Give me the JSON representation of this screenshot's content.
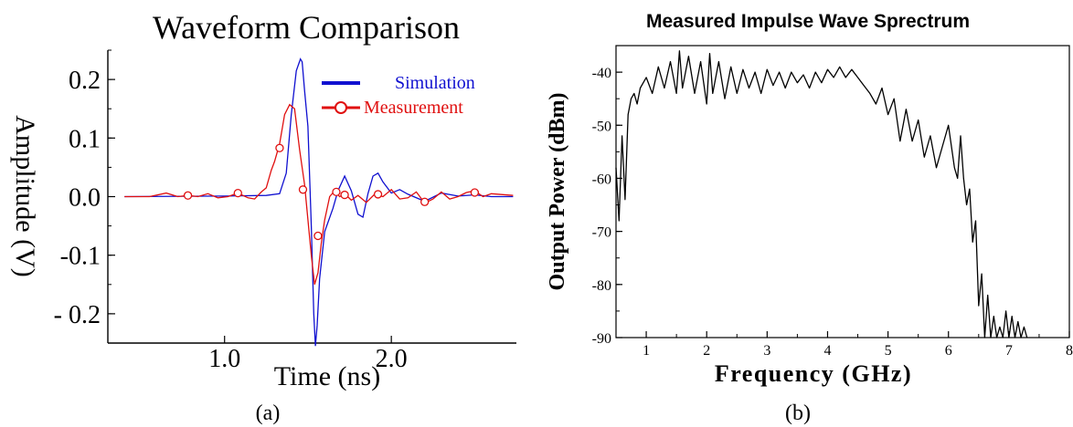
{
  "chart_data": [
    {
      "panel_label": "(a)",
      "type": "line",
      "title": "Waveform Comparison",
      "xlabel": "Time (ns)",
      "ylabel": "Amplitude (V)",
      "xlim": [
        0.3,
        2.75
      ],
      "ylim": [
        -0.25,
        0.25
      ],
      "xticks": [
        1.0,
        2.0
      ],
      "xtick_labels": [
        "1.0",
        "2.0"
      ],
      "yticks": [
        0.2,
        0.1,
        0.0,
        -0.1,
        -0.2
      ],
      "ytick_labels": [
        "0.2",
        "0.1",
        "0.0",
        "-0.1",
        "- 0.2"
      ],
      "legend_position": "top-right",
      "grid": false,
      "series": [
        {
          "name": "Simulation",
          "color": "#1010d0",
          "marker": "none",
          "x": [
            0.4,
            1.0,
            1.25,
            1.33,
            1.37,
            1.4,
            1.43,
            1.455,
            1.465,
            1.48,
            1.5,
            1.52,
            1.535,
            1.545,
            1.555,
            1.57,
            1.6,
            1.65,
            1.68,
            1.72,
            1.76,
            1.8,
            1.83,
            1.86,
            1.89,
            1.92,
            1.95,
            2.0,
            2.05,
            2.1,
            2.2,
            2.3,
            2.4,
            2.5,
            2.6,
            2.73
          ],
          "y": [
            0.0,
            0.001,
            0.002,
            0.005,
            0.04,
            0.14,
            0.215,
            0.235,
            0.23,
            0.18,
            0.12,
            -0.05,
            -0.2,
            -0.255,
            -0.22,
            -0.14,
            -0.06,
            -0.02,
            0.01,
            0.035,
            0.01,
            -0.03,
            -0.035,
            0.005,
            0.035,
            0.04,
            0.025,
            0.006,
            0.012,
            0.004,
            -0.008,
            0.006,
            0.001,
            0.003,
            0.0,
            0.0
          ]
        },
        {
          "name": "Measurement",
          "color": "#e01010",
          "marker": "circle",
          "x": [
            0.4,
            0.55,
            0.65,
            0.72,
            0.78,
            0.84,
            0.9,
            0.96,
            1.02,
            1.08,
            1.14,
            1.18,
            1.22,
            1.25,
            1.28,
            1.3,
            1.33,
            1.36,
            1.39,
            1.42,
            1.45,
            1.48,
            1.52,
            1.54,
            1.56,
            1.58,
            1.6,
            1.63,
            1.66,
            1.69,
            1.72,
            1.76,
            1.8,
            1.85,
            1.9,
            1.95,
            2.0,
            2.05,
            2.1,
            2.15,
            2.2,
            2.25,
            2.3,
            2.35,
            2.4,
            2.45,
            2.5,
            2.55,
            2.6,
            2.73
          ],
          "y": [
            0.0,
            0.0,
            0.006,
            0.0,
            0.002,
            0.0,
            0.005,
            -0.002,
            0.0,
            0.006,
            -0.002,
            -0.004,
            0.008,
            0.015,
            0.045,
            0.06,
            0.09,
            0.14,
            0.157,
            0.15,
            0.08,
            0.02,
            -0.1,
            -0.15,
            -0.13,
            -0.08,
            -0.04,
            0.0,
            0.01,
            0.0,
            0.005,
            -0.006,
            0.002,
            -0.01,
            0.004,
            0.0,
            0.012,
            -0.004,
            -0.002,
            0.008,
            -0.011,
            -0.004,
            0.008,
            -0.004,
            0.0,
            0.007,
            0.01,
            0.0,
            0.005,
            0.002
          ],
          "marker_points": [
            [
              0.78,
              0.002
            ],
            [
              1.08,
              0.006
            ],
            [
              1.33,
              0.083
            ],
            [
              1.47,
              0.012
            ],
            [
              1.56,
              -0.067
            ],
            [
              1.67,
              0.008
            ],
            [
              1.72,
              0.003
            ],
            [
              1.92,
              0.004
            ],
            [
              2.2,
              -0.009
            ],
            [
              2.5,
              0.007
            ]
          ]
        }
      ]
    },
    {
      "panel_label": "(b)",
      "type": "line",
      "title": "Measured Impulse Wave Sprectrum",
      "xlabel": "Frequency (GHz)",
      "ylabel": "Output Power (dBm)",
      "xlim": [
        0.5,
        8
      ],
      "ylim": [
        -90,
        -35
      ],
      "xticks": [
        1,
        2,
        3,
        4,
        5,
        6,
        7,
        8
      ],
      "xtick_labels": [
        "1",
        "2",
        "3",
        "4",
        "5",
        "6",
        "7",
        "8"
      ],
      "yticks": [
        -40,
        -50,
        -60,
        -70,
        -80,
        -90
      ],
      "ytick_labels": [
        "-40",
        "-50",
        "-60",
        "-70",
        "-80",
        "-90"
      ],
      "grid": false,
      "series": [
        {
          "color": "#000000",
          "x": [
            0.5,
            0.55,
            0.6,
            0.65,
            0.7,
            0.75,
            0.8,
            0.85,
            0.9,
            0.95,
            1.0,
            1.1,
            1.2,
            1.3,
            1.4,
            1.5,
            1.55,
            1.6,
            1.7,
            1.8,
            1.9,
            2.0,
            2.05,
            2.1,
            2.2,
            2.3,
            2.4,
            2.5,
            2.6,
            2.7,
            2.8,
            2.9,
            3.0,
            3.1,
            3.2,
            3.3,
            3.4,
            3.5,
            3.6,
            3.7,
            3.8,
            3.9,
            4.0,
            4.1,
            4.2,
            4.3,
            4.4,
            4.5,
            4.6,
            4.7,
            4.8,
            4.9,
            5.0,
            5.1,
            5.2,
            5.3,
            5.4,
            5.5,
            5.6,
            5.7,
            5.8,
            5.9,
            6.0,
            6.1,
            6.15,
            6.2,
            6.25,
            6.3,
            6.35,
            6.4,
            6.45,
            6.5,
            6.55,
            6.6,
            6.65,
            6.7,
            6.75,
            6.8,
            6.85,
            6.9,
            6.95,
            7.0,
            7.05,
            7.1,
            7.15,
            7.2,
            7.25,
            7.3
          ],
          "y": [
            -58,
            -68,
            -52,
            -64,
            -48,
            -45,
            -44,
            -46,
            -43,
            -42,
            -41,
            -44,
            -39,
            -43,
            -38,
            -44,
            -36,
            -43,
            -37,
            -44,
            -38,
            -46,
            -36.5,
            -44,
            -38,
            -45,
            -39,
            -44,
            -39.5,
            -43,
            -40,
            -44,
            -39.5,
            -42.5,
            -40,
            -43,
            -40,
            -42,
            -40.5,
            -43,
            -40,
            -42,
            -39.5,
            -41,
            -39,
            -41,
            -39.5,
            -41,
            -42.5,
            -44,
            -46,
            -43,
            -48,
            -45,
            -53,
            -47,
            -53,
            -49,
            -56,
            -52,
            -58,
            -54,
            -50,
            -58,
            -60,
            -52,
            -60,
            -65,
            -62,
            -72,
            -68,
            -84,
            -78,
            -90,
            -82,
            -90,
            -86,
            -90,
            -88,
            -90,
            -85,
            -90,
            -86,
            -90,
            -87,
            -90,
            -88,
            -90
          ]
        }
      ]
    }
  ]
}
